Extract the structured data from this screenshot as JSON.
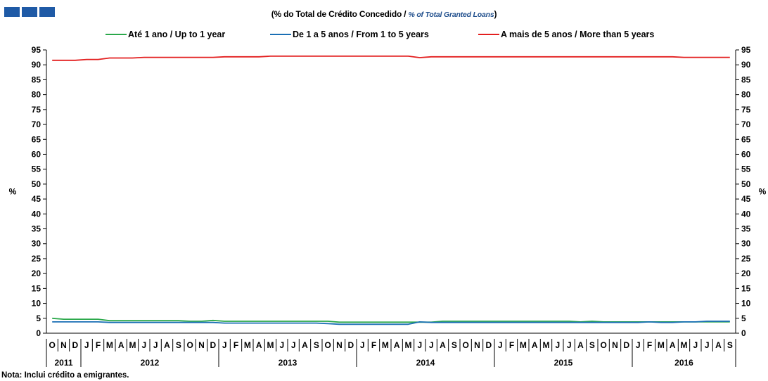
{
  "header": {
    "subtitle_pt": "(% do Total de Crédito Concedido /",
    "subtitle_en": "% of Total Granted Loans",
    "subtitle_close": ")"
  },
  "note": "Nota: Inclui crédito a emigrantes.",
  "colors": {
    "brand": "#1f5aa6",
    "up_to_1": "#2aa84a",
    "from_1_to_5": "#1a6fb5",
    "more_than_5": "#e31f1f"
  },
  "chart_data": {
    "type": "line",
    "ylabel": "%",
    "ylabel_right": "%",
    "ylim": [
      0,
      95
    ],
    "yticks": [
      0,
      5,
      10,
      15,
      20,
      25,
      30,
      35,
      40,
      45,
      50,
      55,
      60,
      65,
      70,
      75,
      80,
      85,
      90,
      95
    ],
    "legend_position": "top",
    "grid": false,
    "x": [
      "O",
      "N",
      "D",
      "J",
      "F",
      "M",
      "A",
      "M",
      "J",
      "J",
      "A",
      "S",
      "O",
      "N",
      "D",
      "J",
      "F",
      "M",
      "A",
      "M",
      "J",
      "J",
      "A",
      "S",
      "O",
      "N",
      "D",
      "J",
      "F",
      "M",
      "A",
      "M",
      "J",
      "J",
      "A",
      "S",
      "O",
      "N",
      "D",
      "J",
      "F",
      "M",
      "A",
      "M",
      "J",
      "J",
      "A",
      "S",
      "O",
      "N",
      "D",
      "J",
      "F",
      "M",
      "A",
      "M",
      "J",
      "J",
      "A",
      "S"
    ],
    "years": [
      {
        "label": "2011",
        "months": 3
      },
      {
        "label": "2012",
        "months": 12
      },
      {
        "label": "2013",
        "months": 12
      },
      {
        "label": "2014",
        "months": 12
      },
      {
        "label": "2015",
        "months": 12
      },
      {
        "label": "2016",
        "months": 9
      }
    ],
    "series": [
      {
        "name": "Até 1 ano / Up to 1 year",
        "color": "#2aa84a",
        "values": [
          5.0,
          4.7,
          4.7,
          4.7,
          4.7,
          4.2,
          4.2,
          4.2,
          4.2,
          4.2,
          4.2,
          4.2,
          4.0,
          4.0,
          4.3,
          4.0,
          4.0,
          4.0,
          4.0,
          4.0,
          4.0,
          4.0,
          4.0,
          4.0,
          4.0,
          3.7,
          3.7,
          3.7,
          3.7,
          3.7,
          3.7,
          3.7,
          3.7,
          3.7,
          4.0,
          4.0,
          4.0,
          4.0,
          4.0,
          4.0,
          4.0,
          4.0,
          4.0,
          4.0,
          4.0,
          4.0,
          3.8,
          4.0,
          3.8,
          3.8,
          3.8,
          3.8,
          3.8,
          3.8,
          3.8,
          3.8,
          3.8,
          3.8,
          3.8,
          3.8
        ]
      },
      {
        "name": "De 1 a 5 anos / From 1 to 5 years",
        "color": "#1a6fb5",
        "values": [
          3.8,
          3.8,
          3.8,
          3.8,
          3.8,
          3.6,
          3.6,
          3.6,
          3.6,
          3.6,
          3.6,
          3.6,
          3.6,
          3.6,
          3.6,
          3.4,
          3.4,
          3.4,
          3.4,
          3.4,
          3.4,
          3.4,
          3.4,
          3.4,
          3.2,
          3.0,
          3.0,
          3.0,
          3.0,
          3.0,
          3.0,
          3.0,
          3.8,
          3.6,
          3.6,
          3.6,
          3.6,
          3.6,
          3.6,
          3.6,
          3.6,
          3.6,
          3.6,
          3.6,
          3.6,
          3.6,
          3.6,
          3.6,
          3.6,
          3.6,
          3.6,
          3.6,
          3.8,
          3.6,
          3.6,
          3.8,
          3.8,
          4.0,
          4.0,
          4.0
        ]
      },
      {
        "name": "A mais de 5 anos / More than 5 years",
        "color": "#e31f1f",
        "values": [
          91.5,
          91.5,
          91.5,
          91.8,
          91.8,
          92.3,
          92.3,
          92.3,
          92.5,
          92.5,
          92.5,
          92.5,
          92.5,
          92.5,
          92.5,
          92.7,
          92.7,
          92.7,
          92.7,
          92.9,
          92.9,
          92.9,
          92.9,
          92.9,
          92.9,
          92.9,
          92.9,
          92.9,
          92.9,
          92.9,
          92.9,
          92.9,
          92.4,
          92.7,
          92.7,
          92.7,
          92.7,
          92.7,
          92.7,
          92.7,
          92.7,
          92.7,
          92.7,
          92.7,
          92.7,
          92.7,
          92.7,
          92.7,
          92.7,
          92.7,
          92.7,
          92.7,
          92.7,
          92.7,
          92.7,
          92.5,
          92.5,
          92.5,
          92.5,
          92.5
        ]
      }
    ]
  }
}
